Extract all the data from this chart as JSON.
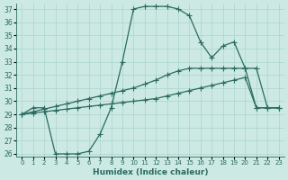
{
  "xlabel": "Humidex (Indice chaleur)",
  "xlim": [
    -0.5,
    23.5
  ],
  "ylim": [
    25.8,
    37.4
  ],
  "yticks": [
    26,
    27,
    28,
    29,
    30,
    31,
    32,
    33,
    34,
    35,
    36,
    37
  ],
  "xticks": [
    0,
    1,
    2,
    3,
    4,
    5,
    6,
    7,
    8,
    9,
    10,
    11,
    12,
    13,
    14,
    15,
    16,
    17,
    18,
    19,
    20,
    21,
    22,
    23
  ],
  "bg_color": "#cce9e4",
  "grid_color": "#aad4ce",
  "line_color": "#2a6b60",
  "line_width": 0.9,
  "marker": "+",
  "marker_size": 4,
  "curve1_x": [
    0,
    1,
    2,
    3,
    4,
    5,
    6,
    7,
    8,
    9,
    10,
    11,
    12,
    13,
    14,
    15,
    16,
    17,
    18,
    19,
    20,
    21,
    22,
    23
  ],
  "curve1_y": [
    29,
    29.5,
    29.5,
    26.0,
    26.0,
    26.0,
    26.2,
    27.5,
    29.5,
    33.0,
    37.0,
    37.2,
    37.2,
    37.2,
    37.0,
    36.5,
    34.5,
    33.3,
    34.2,
    34.5,
    32.5,
    32.5,
    29.5,
    29.5
  ],
  "curve2_x": [
    0,
    1,
    2,
    3,
    4,
    5,
    6,
    7,
    8,
    9,
    10,
    11,
    12,
    13,
    14,
    15,
    16,
    17,
    18,
    19,
    20,
    21,
    22,
    23
  ],
  "curve2_y": [
    29,
    29.2,
    29.4,
    29.6,
    29.8,
    30.0,
    30.2,
    30.4,
    30.6,
    30.8,
    31.0,
    31.3,
    31.6,
    32.0,
    32.3,
    32.5,
    32.5,
    32.5,
    32.5,
    32.5,
    32.5,
    29.5,
    29.5,
    29.5
  ],
  "curve3_x": [
    0,
    1,
    2,
    3,
    4,
    5,
    6,
    7,
    8,
    9,
    10,
    11,
    12,
    13,
    14,
    15,
    16,
    17,
    18,
    19,
    20,
    21,
    22,
    23
  ],
  "curve3_y": [
    29,
    29.1,
    29.2,
    29.3,
    29.4,
    29.5,
    29.6,
    29.7,
    29.8,
    29.9,
    30.0,
    30.1,
    30.2,
    30.4,
    30.6,
    30.8,
    31.0,
    31.2,
    31.4,
    31.6,
    31.8,
    29.5,
    29.5,
    29.5
  ]
}
